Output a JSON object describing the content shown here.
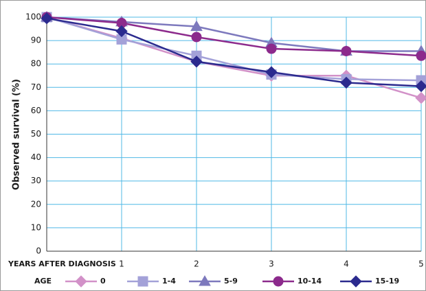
{
  "chart_data": {
    "type": "line",
    "y_label": "Observed survival (%)",
    "x_label": "YEARS AFTER DIAGNOSIS",
    "legend_title": "AGE",
    "x": [
      0,
      1,
      2,
      3,
      4,
      5
    ],
    "xlim": [
      0,
      5
    ],
    "xticks": [
      1,
      2,
      3,
      4,
      5
    ],
    "ylim": [
      0,
      100
    ],
    "yticks": [
      0,
      10,
      20,
      30,
      40,
      50,
      60,
      70,
      80,
      90,
      100
    ],
    "grid": true,
    "series": [
      {
        "name": "0",
        "color": "#d291c8",
        "marker": "diamond",
        "values": [
          100,
          91,
          81,
          75,
          75,
          65.5
        ]
      },
      {
        "name": "1-4",
        "color": "#a3a1d8",
        "marker": "square",
        "values": [
          100,
          90.5,
          83.5,
          75.5,
          73.5,
          73
        ]
      },
      {
        "name": "5-9",
        "color": "#7d79bd",
        "marker": "triangle",
        "values": [
          100,
          98,
          96,
          89,
          85.5,
          85.5
        ]
      },
      {
        "name": "10-14",
        "color": "#8c2a8c",
        "marker": "circle",
        "values": [
          100,
          97.5,
          91.5,
          86.5,
          85.5,
          83.5
        ]
      },
      {
        "name": "15-19",
        "color": "#2b2a8e",
        "marker": "diamond",
        "values": [
          99.5,
          94,
          81,
          76.5,
          72,
          70.5
        ]
      }
    ]
  }
}
